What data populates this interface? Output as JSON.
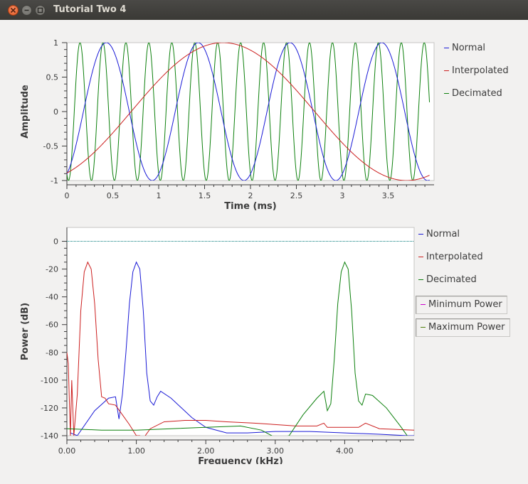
{
  "window": {
    "title": "Tutorial Two 4"
  },
  "colors": {
    "normal": "#1a1ad6",
    "interpolated": "#cc1f1f",
    "decimated": "#0d800d",
    "min_power": "#cc00cc",
    "max_power": "#4f7f0d",
    "ref_line": "#007a7a"
  },
  "legend_top": [
    {
      "label": "Normal",
      "color": "#1a1ad6"
    },
    {
      "label": "Interpolated",
      "color": "#cc1f1f"
    },
    {
      "label": "Decimated",
      "color": "#0d800d"
    }
  ],
  "legend_bottom": [
    {
      "label": "Normal",
      "color": "#1a1ad6",
      "boxed": false
    },
    {
      "label": "Interpolated",
      "color": "#cc1f1f",
      "boxed": false
    },
    {
      "label": "Decimated",
      "color": "#0d800d",
      "boxed": false
    },
    {
      "label": "Minimum Power",
      "color": "#cc00cc",
      "boxed": true
    },
    {
      "label": "Maximum Power",
      "color": "#4f7f0d",
      "boxed": true
    }
  ],
  "chart_data": [
    {
      "type": "line",
      "xlabel": "Time (ms)",
      "ylabel": "Amplitude",
      "xlim": [
        0,
        4
      ],
      "ylim": [
        -1,
        1
      ],
      "xticks": [
        "0",
        "0.5",
        "1",
        "1.5",
        "2",
        "2.5",
        "3",
        "3.5"
      ],
      "xtick_values": [
        0,
        0.5,
        1,
        1.5,
        2,
        2.5,
        3,
        3.5
      ],
      "yticks": [
        "1",
        "0.5",
        "0",
        "-0.5",
        "-1"
      ],
      "ytick_values": [
        1,
        0.5,
        0,
        -0.5,
        -1
      ],
      "series": [
        {
          "name": "Normal",
          "frequency_khz": 1.0,
          "start_value": -0.9,
          "peaks_ms": [
            0.43,
            1.43,
            2.43,
            3.43
          ]
        },
        {
          "name": "Interpolated",
          "frequency_khz": 0.25,
          "start_value": -0.9,
          "peaks_ms": [
            1.7
          ]
        },
        {
          "name": "Decimated",
          "frequency_khz": 4.0,
          "start_value": -0.9
        }
      ]
    },
    {
      "type": "line",
      "xlabel": "Frequency (kHz)",
      "ylabel": "Power (dB)",
      "xlim": [
        0,
        5
      ],
      "ylim": [
        -140,
        10
      ],
      "xticks": [
        "0.00",
        "1.00",
        "2.00",
        "3.00",
        "4.00"
      ],
      "xtick_values": [
        0,
        1,
        2,
        3,
        4
      ],
      "yticks": [
        "0",
        "-20",
        "-40",
        "-60",
        "-80",
        "-100",
        "-120",
        "-140"
      ],
      "ytick_values": [
        0,
        -20,
        -40,
        -60,
        -80,
        -100,
        -120,
        -140
      ],
      "series": [
        {
          "name": "Normal",
          "x": [
            0.05,
            0.15,
            0.4,
            0.6,
            0.7,
            0.75,
            0.8,
            0.85,
            0.9,
            0.95,
            1.0,
            1.05,
            1.1,
            1.15,
            1.2,
            1.25,
            1.3,
            1.35,
            1.5,
            1.8,
            2.0,
            2.3,
            2.6,
            3.0,
            3.5,
            4.0,
            4.5,
            4.9,
            5.0
          ],
          "y": [
            -138,
            -140,
            -122,
            -113,
            -112,
            -128,
            -110,
            -80,
            -45,
            -22,
            -15,
            -20,
            -50,
            -95,
            -115,
            -118,
            -112,
            -108,
            -113,
            -127,
            -134,
            -138,
            -138,
            -137,
            -137,
            -138,
            -139,
            -140,
            -140
          ]
        },
        {
          "name": "Interpolated",
          "x": [
            0.0,
            0.02,
            0.05,
            0.07,
            0.1,
            0.15,
            0.2,
            0.25,
            0.3,
            0.35,
            0.4,
            0.45,
            0.5,
            0.55,
            0.6,
            0.7,
            0.8,
            0.9,
            1.0,
            1.05,
            1.1,
            1.2,
            1.4,
            1.7,
            2.0,
            2.3,
            2.7,
            3.0,
            3.3,
            3.6,
            3.7,
            3.75,
            4.0,
            4.2,
            4.3,
            4.5,
            5.0
          ],
          "y": [
            -80,
            -88,
            -140,
            -100,
            -140,
            -110,
            -50,
            -22,
            -15,
            -20,
            -45,
            -85,
            -112,
            -113,
            -117,
            -118,
            -125,
            -132,
            -140,
            -140,
            -142,
            -135,
            -130,
            -129,
            -129,
            -130,
            -131,
            -132,
            -133,
            -133,
            -131,
            -134,
            -134,
            -134,
            -131,
            -135,
            -136
          ]
        },
        {
          "name": "Decimated",
          "x": [
            0.0,
            0.5,
            1.0,
            1.5,
            2.0,
            2.5,
            2.8,
            2.95,
            3.0,
            3.2,
            3.4,
            3.6,
            3.7,
            3.75,
            3.8,
            3.85,
            3.9,
            3.95,
            4.0,
            4.05,
            4.1,
            4.15,
            4.2,
            4.25,
            4.3,
            4.4,
            4.6,
            4.8,
            4.9
          ],
          "y": [
            -135,
            -136,
            -136,
            -135,
            -134,
            -133,
            -136,
            -140,
            -142,
            -140,
            -125,
            -113,
            -108,
            -122,
            -117,
            -85,
            -45,
            -22,
            -15,
            -20,
            -50,
            -95,
            -115,
            -118,
            -110,
            -111,
            -120,
            -133,
            -140
          ]
        },
        {
          "name": "reference_0dB",
          "x": [
            0,
            5
          ],
          "y": [
            0,
            0
          ]
        }
      ]
    }
  ]
}
